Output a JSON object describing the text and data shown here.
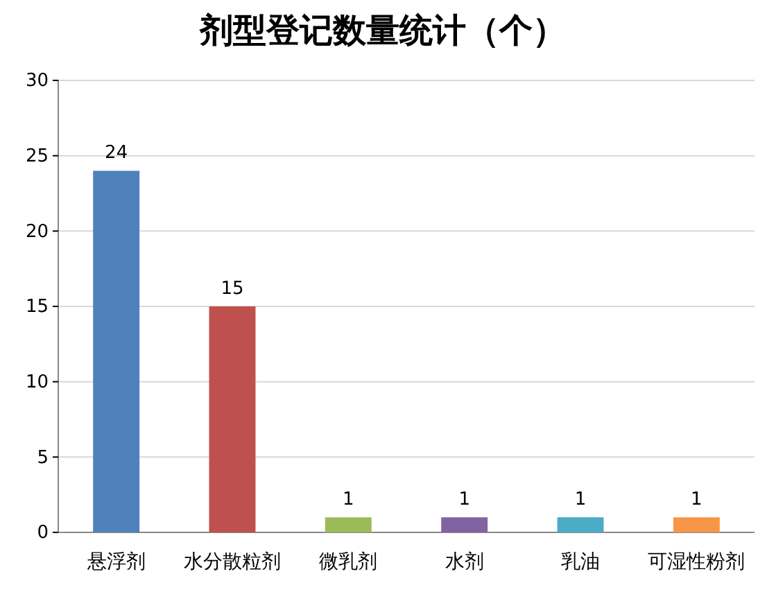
{
  "chart_data": {
    "type": "bar",
    "title": "剂型登记数量统计（个）",
    "categories": [
      "悬浮剂",
      "水分散粒剂",
      "微乳剂",
      "水剂",
      "乳油",
      "可湿性粉剂"
    ],
    "values": [
      24,
      15,
      1,
      1,
      1,
      1
    ],
    "colors": [
      "#4f81bd",
      "#c0504d",
      "#9bbb59",
      "#8064a2",
      "#4bacc6",
      "#f79646"
    ],
    "ylim": [
      0,
      30
    ],
    "yticks": [
      0,
      5,
      10,
      15,
      20,
      25,
      30
    ],
    "grid": "y",
    "data_labels": true
  }
}
